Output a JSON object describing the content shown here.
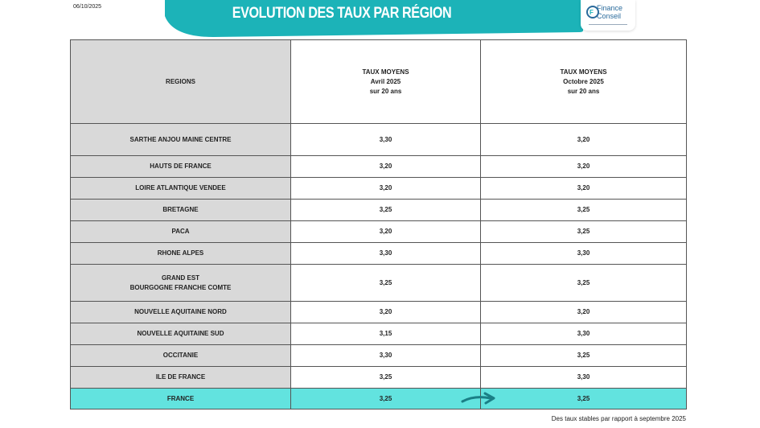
{
  "date": "06/10/2025",
  "header": {
    "title": "EVOLUTION DES TAUX PAR RÉGION",
    "logo": [
      "Finance",
      "Conseil"
    ]
  },
  "table": {
    "columns": [
      [
        "REGIONS"
      ],
      [
        "TAUX MOYENS",
        "Avril 2025",
        "sur 20 ans"
      ],
      [
        "TAUX MOYENS",
        "Octobre 2025",
        "sur 20 ans"
      ]
    ],
    "rows": [
      [
        [
          "SARTHE ANJOU MAINE CENTRE"
        ],
        "3,30",
        "3,20"
      ],
      [
        [
          "HAUTS DE FRANCE"
        ],
        "3,20",
        "3,20"
      ],
      [
        [
          "LOIRE ATLANTIQUE VENDEE"
        ],
        "3,20",
        "3,20"
      ],
      [
        [
          "BRETAGNE"
        ],
        "3,25",
        "3,25"
      ],
      [
        [
          "PACA"
        ],
        "3,20",
        "3,25"
      ],
      [
        [
          "RHONE ALPES"
        ],
        "3,30",
        "3,30"
      ],
      [
        [
          "GRAND EST",
          "BOURGOGNE FRANCHE COMTE"
        ],
        "3,25",
        "3,25"
      ],
      [
        [
          "NOUVELLE AQUITAINE NORD"
        ],
        "3,20",
        "3,20"
      ],
      [
        [
          "NOUVELLE AQUITAINE SUD"
        ],
        "3,15",
        "3,30"
      ],
      [
        [
          "OCCITANIE"
        ],
        "3,30",
        "3,25"
      ],
      [
        [
          "ILE DE FRANCE"
        ],
        "3,25",
        "3,30"
      ],
      [
        [
          "FRANCE"
        ],
        "3,25",
        "3,25"
      ]
    ]
  },
  "footnote": "Des taux stables par rapport à septembre 2025"
}
